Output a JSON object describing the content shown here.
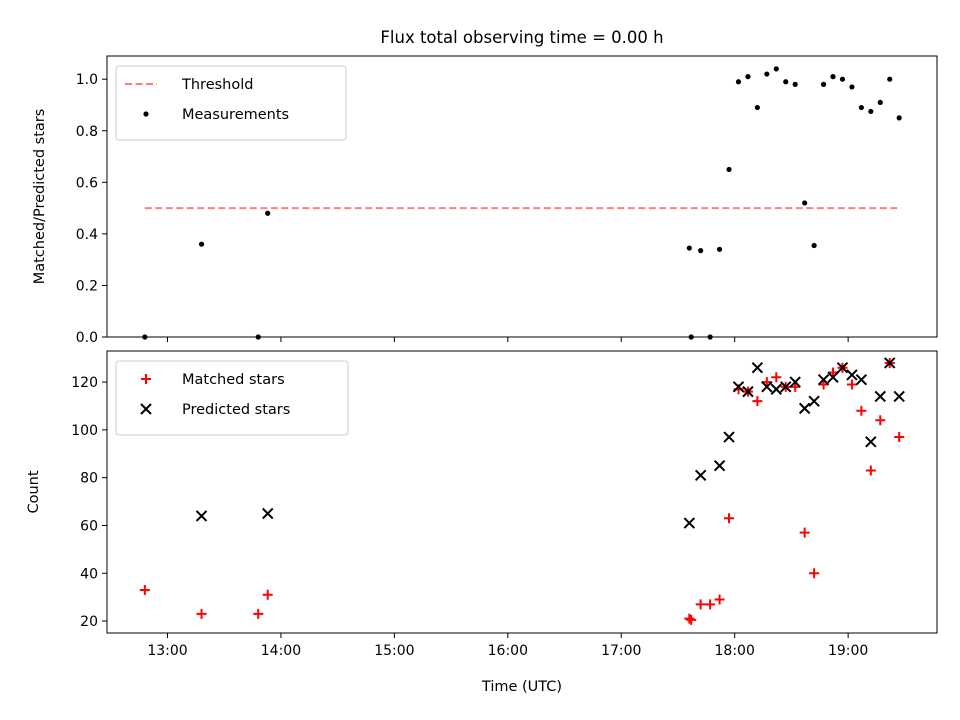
{
  "figure": {
    "title": "Flux total observing time = 0.00 h"
  },
  "chart_data": [
    {
      "type": "scatter",
      "panel": "top",
      "xlabel": "",
      "ylabel": "Matched/Predicted stars",
      "xlim": [
        "12:28",
        "19:47"
      ],
      "ylim": [
        0,
        1.09
      ],
      "yticks": [
        "0.0",
        "0.2",
        "0.4",
        "0.6",
        "0.8",
        "1.0"
      ],
      "xticks": [
        "13:00",
        "14:00",
        "15:00",
        "16:00",
        "17:00",
        "18:00",
        "19:00"
      ],
      "grid": false,
      "legend": "top-left",
      "threshold": {
        "name": "Threshold",
        "value": 0.5,
        "x_start": "12:48",
        "x_end": "19:28",
        "color": "#ff7f7f",
        "style": "dashed"
      },
      "series": [
        {
          "name": "Measurements",
          "marker": "dot",
          "color": "#000000",
          "points": [
            [
              "12:48",
              0.0
            ],
            [
              "13:18",
              0.36
            ],
            [
              "13:48",
              0.0
            ],
            [
              "13:53",
              0.48
            ],
            [
              "17:36",
              0.345
            ],
            [
              "17:37",
              0.0
            ],
            [
              "17:42",
              0.335
            ],
            [
              "17:47",
              0.0
            ],
            [
              "17:52",
              0.34
            ],
            [
              "17:57",
              0.65
            ],
            [
              "18:02",
              0.99
            ],
            [
              "18:07",
              1.01
            ],
            [
              "18:12",
              0.89
            ],
            [
              "18:17",
              1.02
            ],
            [
              "18:22",
              1.04
            ],
            [
              "18:27",
              0.99
            ],
            [
              "18:32",
              0.98
            ],
            [
              "18:37",
              0.52
            ],
            [
              "18:42",
              0.355
            ],
            [
              "18:47",
              0.98
            ],
            [
              "18:52",
              1.01
            ],
            [
              "18:57",
              1.0
            ],
            [
              "19:02",
              0.97
            ],
            [
              "19:07",
              0.89
            ],
            [
              "19:12",
              0.875
            ],
            [
              "19:17",
              0.91
            ],
            [
              "19:22",
              1.0
            ],
            [
              "19:27",
              0.85
            ]
          ]
        }
      ]
    },
    {
      "type": "scatter",
      "panel": "bottom",
      "xlabel": "Time (UTC)",
      "ylabel": "Count",
      "xlim": [
        "12:28",
        "19:47"
      ],
      "ylim": [
        15,
        133
      ],
      "yticks": [
        "20",
        "40",
        "60",
        "80",
        "100",
        "120"
      ],
      "xticks": [
        "13:00",
        "14:00",
        "15:00",
        "16:00",
        "17:00",
        "18:00",
        "19:00"
      ],
      "grid": false,
      "legend": "top-left",
      "series": [
        {
          "name": "Matched stars",
          "marker": "plus",
          "color": "#ff0000",
          "points": [
            [
              "12:48",
              33
            ],
            [
              "13:18",
              23
            ],
            [
              "13:48",
              23
            ],
            [
              "13:53",
              31
            ],
            [
              "17:36",
              21
            ],
            [
              "17:37",
              20.5
            ],
            [
              "17:42",
              27
            ],
            [
              "17:47",
              27
            ],
            [
              "17:52",
              29
            ],
            [
              "17:57",
              63
            ],
            [
              "18:02",
              117
            ],
            [
              "18:07",
              116
            ],
            [
              "18:12",
              112
            ],
            [
              "18:17",
              120
            ],
            [
              "18:22",
              122
            ],
            [
              "18:27",
              118
            ],
            [
              "18:32",
              118
            ],
            [
              "18:37",
              57
            ],
            [
              "18:42",
              40
            ],
            [
              "18:47",
              119
            ],
            [
              "18:52",
              124
            ],
            [
              "18:57",
              126
            ],
            [
              "19:02",
              119
            ],
            [
              "19:07",
              108
            ],
            [
              "19:12",
              83
            ],
            [
              "19:17",
              104
            ],
            [
              "19:22",
              128
            ],
            [
              "19:27",
              97
            ]
          ]
        },
        {
          "name": "Predicted stars",
          "marker": "x",
          "color": "#000000",
          "points": [
            [
              "13:18",
              64
            ],
            [
              "13:53",
              65
            ],
            [
              "17:36",
              61
            ],
            [
              "17:42",
              81
            ],
            [
              "17:52",
              85
            ],
            [
              "17:57",
              97
            ],
            [
              "18:02",
              118
            ],
            [
              "18:07",
              116
            ],
            [
              "18:12",
              126
            ],
            [
              "18:17",
              118
            ],
            [
              "18:22",
              117
            ],
            [
              "18:27",
              118
            ],
            [
              "18:32",
              120
            ],
            [
              "18:37",
              109
            ],
            [
              "18:42",
              112
            ],
            [
              "18:47",
              121
            ],
            [
              "18:52",
              122
            ],
            [
              "18:57",
              126
            ],
            [
              "19:02",
              123
            ],
            [
              "19:07",
              121
            ],
            [
              "19:12",
              95
            ],
            [
              "19:17",
              114
            ],
            [
              "19:22",
              128
            ],
            [
              "19:27",
              114
            ]
          ]
        }
      ]
    }
  ]
}
